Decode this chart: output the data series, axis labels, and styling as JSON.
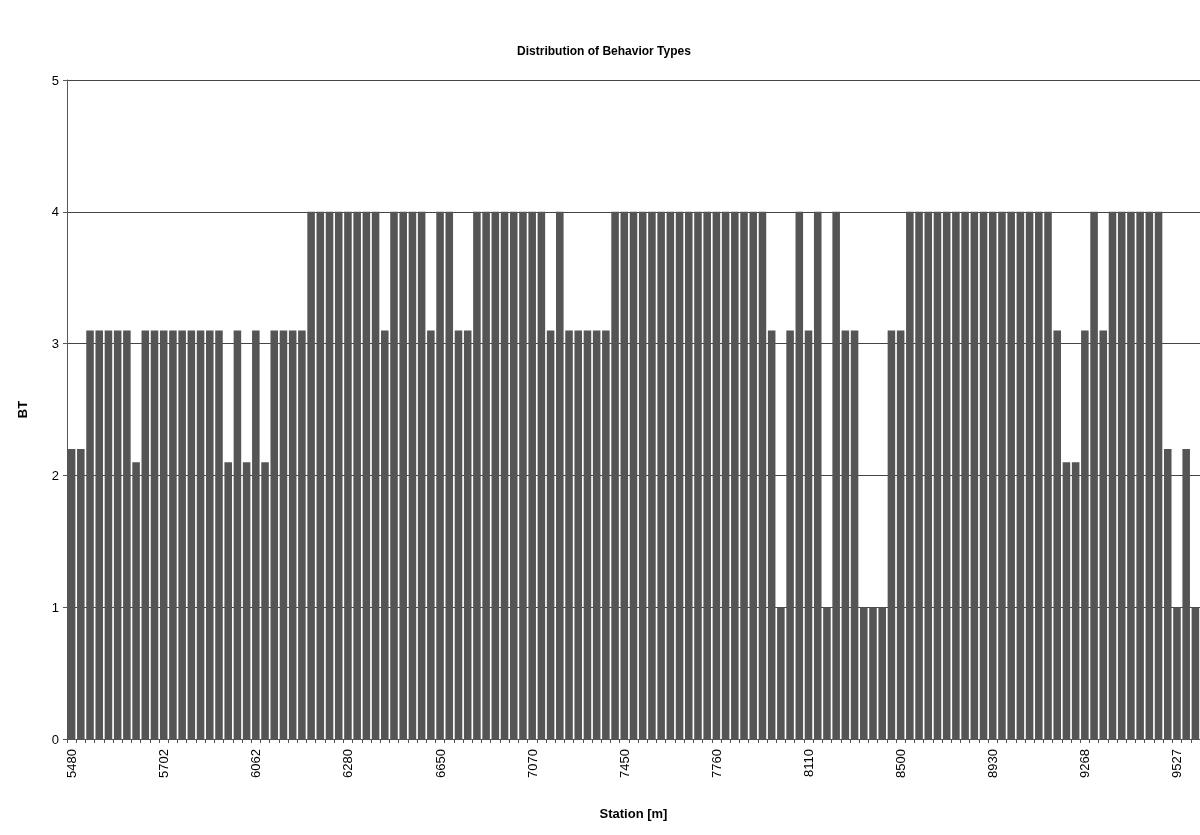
{
  "chart_data": {
    "type": "bar",
    "title": "Distribution of Behavior Types",
    "xlabel": "Station [m]",
    "ylabel": "BT",
    "categories": [
      "5480",
      null,
      null,
      null,
      null,
      null,
      null,
      null,
      null,
      null,
      "5702",
      null,
      null,
      null,
      null,
      null,
      null,
      null,
      null,
      null,
      "6062",
      null,
      null,
      null,
      null,
      null,
      null,
      null,
      null,
      null,
      "6280",
      null,
      null,
      null,
      null,
      null,
      null,
      null,
      null,
      null,
      "6650",
      null,
      null,
      null,
      null,
      null,
      null,
      null,
      null,
      null,
      "7070",
      null,
      null,
      null,
      null,
      null,
      null,
      null,
      null,
      null,
      "7450",
      null,
      null,
      null,
      null,
      null,
      null,
      null,
      null,
      null,
      "7760",
      null,
      null,
      null,
      null,
      null,
      null,
      null,
      null,
      null,
      "8110",
      null,
      null,
      null,
      null,
      null,
      null,
      null,
      null,
      null,
      "8500",
      null,
      null,
      null,
      null,
      null,
      null,
      null,
      null,
      null,
      "8930",
      null,
      null,
      null,
      null,
      null,
      null,
      null,
      null,
      null,
      "9268",
      null,
      null,
      null,
      null,
      null,
      null,
      null,
      null,
      null,
      "9527",
      null,
      null
    ],
    "values": [
      2.2,
      2.2,
      3.1,
      3.1,
      3.1,
      3.1,
      3.1,
      2.1,
      3.1,
      3.1,
      3.1,
      3.1,
      3.1,
      3.1,
      3.1,
      3.1,
      3.1,
      2.1,
      3.1,
      2.1,
      3.1,
      2.1,
      3.1,
      3.1,
      3.1,
      3.1,
      4,
      4,
      4,
      4,
      4,
      4,
      4,
      4,
      3.1,
      4,
      4,
      4,
      4,
      3.1,
      4,
      4,
      3.1,
      3.1,
      4,
      4,
      4,
      4,
      4,
      4,
      4,
      4,
      3.1,
      4,
      3.1,
      3.1,
      3.1,
      3.1,
      3.1,
      4,
      4,
      4,
      4,
      4,
      4,
      4,
      4,
      4,
      4,
      4,
      4,
      4,
      4,
      4,
      4,
      4,
      3.1,
      1,
      3.1,
      4,
      3.1,
      4,
      1,
      4,
      3.1,
      3.1,
      1,
      1,
      1,
      3.1,
      3.1,
      4,
      4,
      4,
      4,
      4,
      4,
      4,
      4,
      4,
      4,
      4,
      4,
      4,
      4,
      4,
      4,
      3.1,
      2.1,
      2.1,
      3.1,
      4,
      3.1,
      4,
      4,
      4,
      4,
      4,
      4,
      2.2,
      1,
      2.2,
      1
    ],
    "color": "#555555",
    "ylim": [
      0,
      5
    ],
    "yticks": [
      0,
      1,
      2,
      3,
      4,
      5
    ],
    "grid": "y"
  }
}
